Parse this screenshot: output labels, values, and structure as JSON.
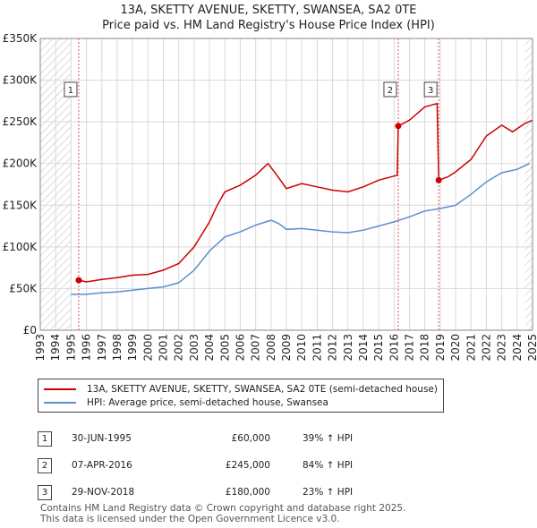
{
  "title": "13A, SKETTY AVENUE, SKETTY, SWANSEA, SA2 0TE",
  "subtitle": "Price paid vs. HM Land Registry's House Price Index (HPI)",
  "colors": {
    "property": "#cc0000",
    "hpi": "#5b8fce",
    "grid": "#d9d9d9",
    "marker_line": "#e05555"
  },
  "legend": {
    "property_label": "13A, SKETTY AVENUE, SKETTY, SWANSEA, SA2 0TE (semi-detached house)",
    "hpi_label": "HPI: Average price, semi-detached house, Swansea"
  },
  "sales": [
    {
      "num": "1",
      "date": "30-JUN-1995",
      "price": "£60,000",
      "hpi_change": "39% ↑ HPI"
    },
    {
      "num": "2",
      "date": "07-APR-2016",
      "price": "£245,000",
      "hpi_change": "84% ↑ HPI"
    },
    {
      "num": "3",
      "date": "29-NOV-2018",
      "price": "£180,000",
      "hpi_change": "23% ↑ HPI"
    }
  ],
  "footer": {
    "line1": "Contains HM Land Registry data © Crown copyright and database right 2025.",
    "line2": "This data is licensed under the Open Government Licence v3.0."
  },
  "chart_data": {
    "type": "line",
    "title": "13A, SKETTY AVENUE, SKETTY, SWANSEA, SA2 0TE",
    "xlim": [
      1993,
      2025
    ],
    "ylim": [
      0,
      350000
    ],
    "x_ticks": [
      1993,
      1994,
      1995,
      1996,
      1997,
      1998,
      1999,
      2000,
      2001,
      2002,
      2003,
      2004,
      2005,
      2006,
      2007,
      2008,
      2009,
      2010,
      2011,
      2012,
      2013,
      2014,
      2015,
      2016,
      2017,
      2018,
      2019,
      2020,
      2021,
      2022,
      2023,
      2024,
      2025
    ],
    "y_ticks": [
      0,
      50000,
      100000,
      150000,
      200000,
      250000,
      300000,
      350000
    ],
    "y_tick_labels": [
      "£0",
      "£50K",
      "£100K",
      "£150K",
      "£200K",
      "£250K",
      "£300K",
      "£350K"
    ],
    "hatch_ranges": [
      [
        1993,
        1995.0
      ],
      [
        2024.5,
        2025
      ]
    ],
    "series": [
      {
        "name": "13A, SKETTY AVENUE, SKETTY, SWANSEA, SA2 0TE (semi-detached house)",
        "points": [
          [
            1995.5,
            60000
          ],
          [
            1996,
            58000
          ],
          [
            1997,
            61000
          ],
          [
            1998,
            63000
          ],
          [
            1999,
            66000
          ],
          [
            2000,
            67000
          ],
          [
            2001,
            72000
          ],
          [
            2002,
            80000
          ],
          [
            2003,
            100000
          ],
          [
            2004,
            130000
          ],
          [
            2004.5,
            150000
          ],
          [
            2005,
            166000
          ],
          [
            2006,
            174000
          ],
          [
            2007,
            186000
          ],
          [
            2007.8,
            200000
          ],
          [
            2008.3,
            188000
          ],
          [
            2009,
            170000
          ],
          [
            2010,
            176000
          ],
          [
            2011,
            172000
          ],
          [
            2012,
            168000
          ],
          [
            2013,
            166000
          ],
          [
            2014,
            172000
          ],
          [
            2015,
            180000
          ],
          [
            2016.2,
            186000
          ],
          [
            2016.27,
            245000
          ],
          [
            2017,
            252000
          ],
          [
            2018,
            268000
          ],
          [
            2018.8,
            272000
          ],
          [
            2018.9,
            180000
          ],
          [
            2019.5,
            184000
          ],
          [
            2020,
            190000
          ],
          [
            2021,
            205000
          ],
          [
            2022,
            233000
          ],
          [
            2023,
            246000
          ],
          [
            2023.7,
            238000
          ],
          [
            2024.5,
            248000
          ],
          [
            2025,
            252000
          ]
        ]
      },
      {
        "name": "HPI: Average price, semi-detached house, Swansea",
        "points": [
          [
            1995,
            43000
          ],
          [
            1996,
            43000
          ],
          [
            1997,
            45000
          ],
          [
            1998,
            46000
          ],
          [
            1999,
            48000
          ],
          [
            2000,
            50000
          ],
          [
            2001,
            52000
          ],
          [
            2002,
            57000
          ],
          [
            2003,
            72000
          ],
          [
            2004,
            95000
          ],
          [
            2005,
            112000
          ],
          [
            2006,
            118000
          ],
          [
            2007,
            126000
          ],
          [
            2008,
            132000
          ],
          [
            2008.5,
            128000
          ],
          [
            2009,
            121000
          ],
          [
            2010,
            122000
          ],
          [
            2011,
            120000
          ],
          [
            2012,
            118000
          ],
          [
            2013,
            117000
          ],
          [
            2014,
            120000
          ],
          [
            2015,
            125000
          ],
          [
            2016,
            130000
          ],
          [
            2017,
            136000
          ],
          [
            2018,
            143000
          ],
          [
            2019,
            146000
          ],
          [
            2020,
            150000
          ],
          [
            2021,
            163000
          ],
          [
            2022,
            178000
          ],
          [
            2023,
            189000
          ],
          [
            2024,
            193000
          ],
          [
            2024.8,
            200000
          ]
        ]
      }
    ],
    "markers": [
      {
        "label": "1",
        "x": 1995.5,
        "y": 60000
      },
      {
        "label": "2",
        "x": 2016.27,
        "y": 245000
      },
      {
        "label": "3",
        "x": 2018.9,
        "y": 180000
      }
    ]
  }
}
